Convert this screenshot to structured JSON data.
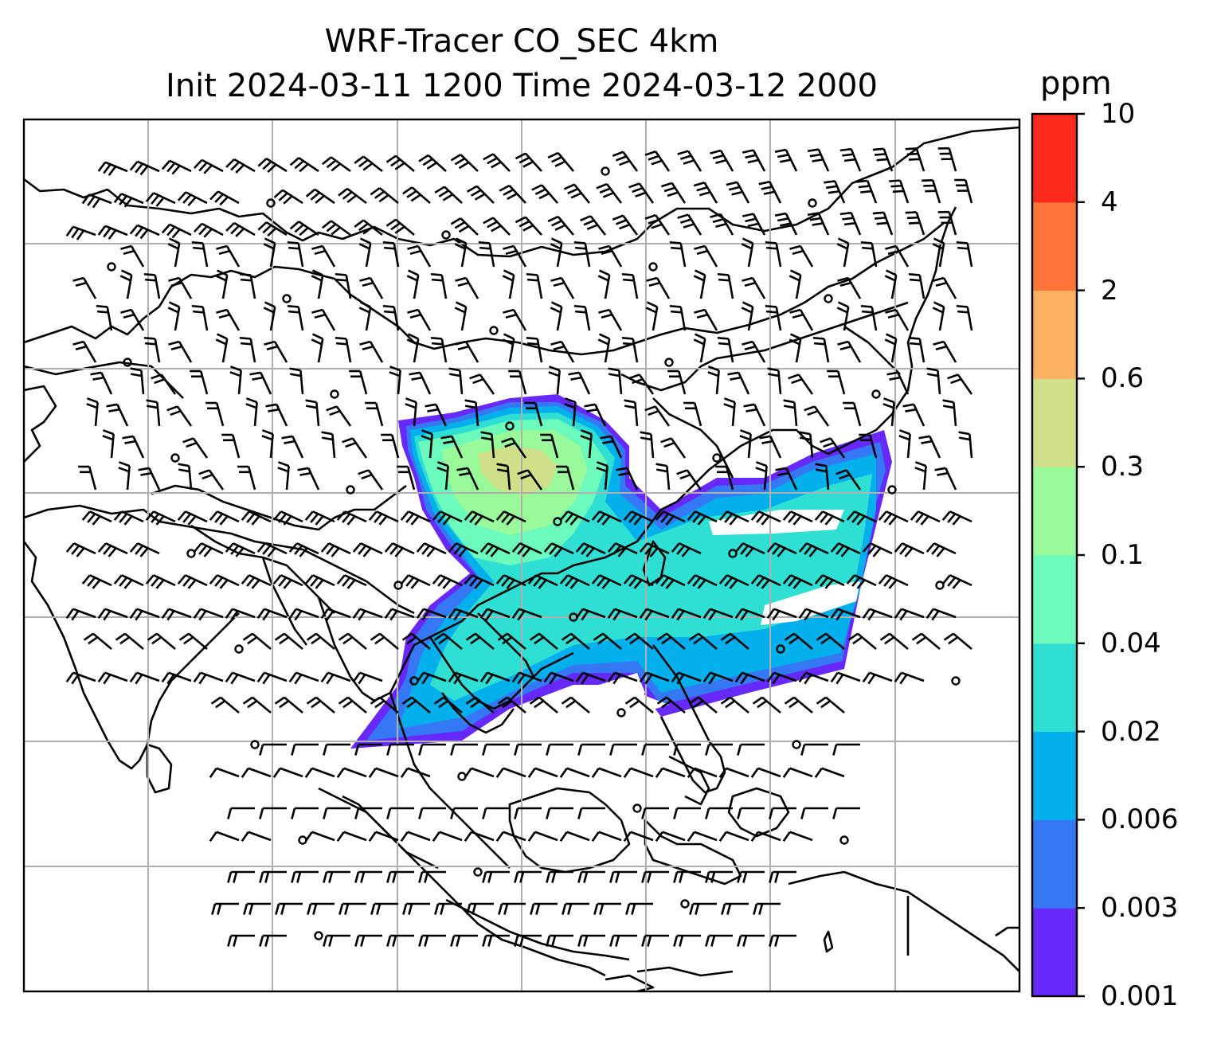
{
  "title": {
    "line1": "WRF-Tracer CO_SEC 4km",
    "line2": "Init 2024-03-11 1200 Time 2024-03-12 2000"
  },
  "colorbar": {
    "unit": "ppm",
    "ticks": [
      "0.001",
      "0.003",
      "0.006",
      "0.02",
      "0.04",
      "0.1",
      "0.3",
      "0.6",
      "2",
      "4",
      "10"
    ],
    "colors": [
      "#6629fa",
      "#3478f4",
      "#04b0ec",
      "#30dfd4",
      "#6cfbbc",
      "#98fa99",
      "#cfe089",
      "#fcb064",
      "#fd7338",
      "#fb2a1a"
    ]
  },
  "map": {
    "gridlines": true,
    "coastline_color": "#000000",
    "wind_barbs": true,
    "plume_levels_present": [
      "0.001",
      "0.003",
      "0.006",
      "0.02",
      "0.04",
      "0.1",
      "0.3"
    ]
  }
}
